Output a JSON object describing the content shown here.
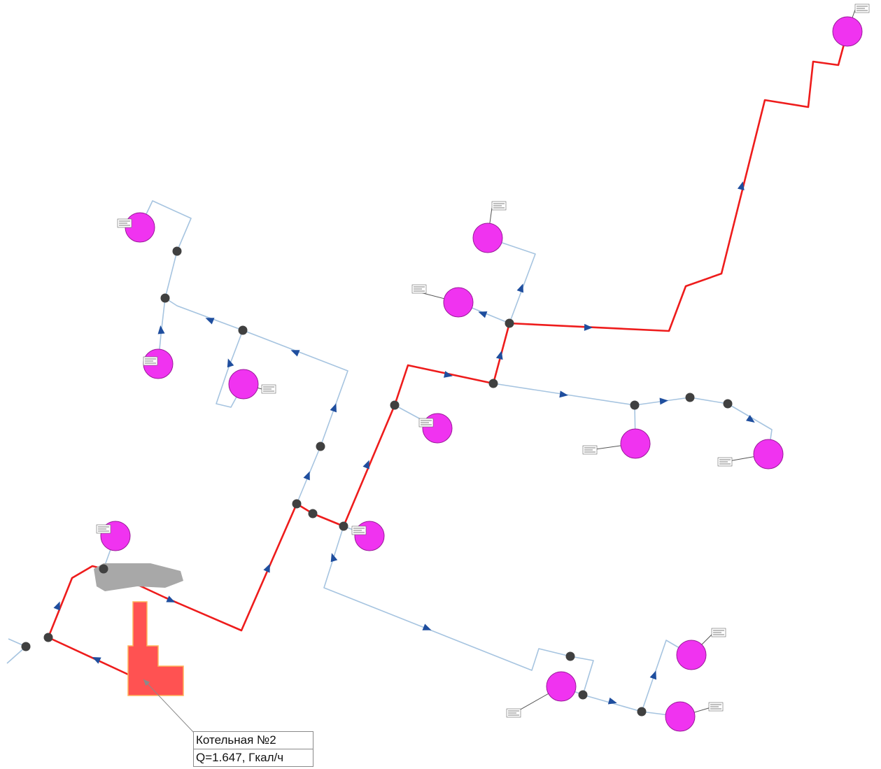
{
  "scheme": {
    "colors": {
      "main_pipe": "#ee1c1c",
      "branch_pipe": "#a6c4e0",
      "flow_arrow": "#1f4e9e",
      "node": "#404040",
      "consumer": "#f033f0",
      "consumer_stroke": "#9a1a9a",
      "boiler": "#ff5252",
      "boiler_stroke": "#ffb35a",
      "building": "#a8a8a8"
    },
    "consumer_icon": "consumer-circle",
    "node_icon": "pipe-node",
    "arrow_icon": "flow-direction-arrow"
  },
  "boiler": {
    "name": "Котельная №2",
    "capacity": "Q=1.647, Гкал/ч"
  }
}
